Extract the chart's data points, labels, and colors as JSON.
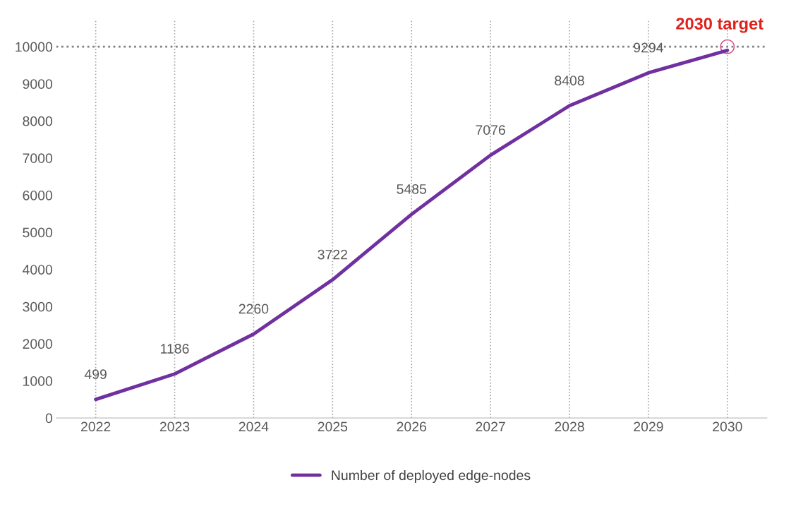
{
  "chart_data": {
    "type": "line",
    "categories": [
      "2022",
      "2023",
      "2024",
      "2025",
      "2026",
      "2027",
      "2028",
      "2029",
      "2030"
    ],
    "series": [
      {
        "name": "Number of deployed edge-nodes",
        "color": "#7030a0",
        "values": [
          499,
          1186,
          2260,
          3722,
          5485,
          7076,
          8408,
          9294,
          9900
        ],
        "value_labels": [
          "499",
          "1186",
          "2260",
          "3722",
          "5485",
          "7076",
          "8408",
          "9294",
          null
        ]
      }
    ],
    "ylim": [
      0,
      10700
    ],
    "yticks": [
      0,
      1000,
      2000,
      3000,
      4000,
      5000,
      6000,
      7000,
      8000,
      9000,
      10000
    ],
    "grid": "x",
    "legend": "bottom",
    "marker": "none",
    "line_style": "solid",
    "ref_lines": [
      {
        "axis": "y",
        "value": 10000,
        "color": "#808080",
        "line_style": "dotted"
      }
    ],
    "annotations": [
      {
        "text": "2030 target",
        "x": "2030",
        "y": 10000
      }
    ]
  }
}
